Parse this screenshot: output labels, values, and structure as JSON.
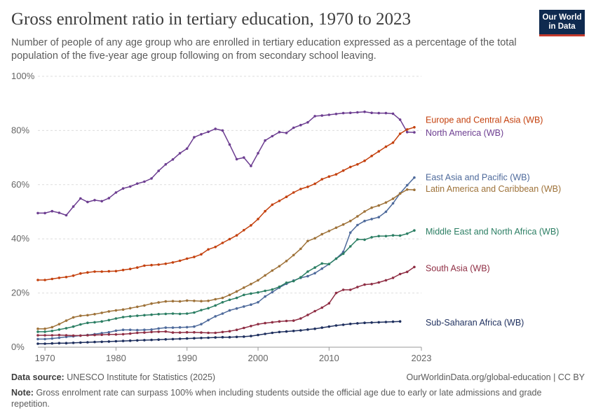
{
  "header": {
    "title": "Gross enrolment ratio in tertiary education, 1970 to 2023",
    "subtitle": "Number of people of any age group who are enrolled in tertiary education expressed as a percentage of the total population of the five-year age group following on from secondary school leaving.",
    "logo_line1": "Our World",
    "logo_line2": "in Data"
  },
  "footer": {
    "source_label": "Data source:",
    "source_text": "UNESCO Institute for Statistics (2025)",
    "url_text": "OurWorldinData.org/global-education | CC BY",
    "note_label": "Note:",
    "note_text": "Gross enrolment rate can surpass 100% when including students outside the official age due to early or late admissions and grade repetition."
  },
  "colors": {
    "grid": "#dddddd",
    "axis": "#999999",
    "text": "#666666"
  },
  "chart_data": {
    "type": "line",
    "title": "Gross enrolment ratio in tertiary education, 1970 to 2023",
    "xlim": [
      1969,
      2023
    ],
    "ylim": [
      0,
      100
    ],
    "xticks": [
      1970,
      1980,
      1990,
      2000,
      2010,
      2023
    ],
    "xtick_labels": [
      "1970",
      "1980",
      "1990",
      "2000",
      "2010",
      "2023"
    ],
    "yticks": [
      0,
      20,
      40,
      60,
      80,
      100
    ],
    "ytick_labels": [
      "0%",
      "20%",
      "40%",
      "60%",
      "80%",
      "100%"
    ],
    "grid": "horizontal dashed",
    "legend": "line-end labels",
    "series": [
      {
        "name": "North America (WB)",
        "color": "#6d3e91",
        "start_year": 1969,
        "values": [
          49.5,
          49.5,
          50.2,
          49.6,
          48.7,
          51.9,
          54.9,
          53.6,
          54.3,
          53.9,
          55.0,
          57.1,
          58.6,
          59.3,
          60.4,
          61.1,
          62.3,
          65.1,
          67.5,
          69.3,
          71.6,
          73.3,
          77.5,
          78.6,
          79.5,
          80.6,
          80.0,
          74.8,
          69.4,
          70.0,
          66.9,
          71.6,
          76.3,
          77.9,
          79.4,
          79.1,
          81.0,
          82.0,
          83.0,
          85.3,
          85.5,
          85.8,
          86.1,
          86.4,
          86.5,
          86.7,
          86.9,
          86.5,
          86.4,
          86.4,
          86.2,
          84.0,
          79.4,
          79.3
        ],
        "label_y": 79.1
      },
      {
        "name": "Europe and Central Asia (WB)",
        "color": "#c4410e",
        "start_year": 1969,
        "values": [
          24.8,
          24.8,
          25.2,
          25.6,
          25.9,
          26.4,
          27.2,
          27.6,
          27.9,
          27.9,
          28.0,
          28.1,
          28.5,
          28.9,
          29.4,
          30.1,
          30.3,
          30.5,
          30.8,
          31.3,
          31.9,
          32.7,
          33.3,
          34.3,
          36.1,
          37.0,
          38.5,
          39.9,
          41.3,
          43.2,
          45.0,
          47.3,
          50.2,
          52.6,
          54.0,
          55.5,
          57.1,
          58.4,
          59.2,
          60.3,
          62.0,
          63.0,
          63.8,
          65.2,
          66.5,
          67.5,
          68.8,
          70.6,
          72.3,
          74.0,
          75.5,
          78.8,
          80.4,
          81.2
        ],
        "label_y": 83.9
      },
      {
        "name": "East Asia and Pacific (WB)",
        "color": "#4e6a9b",
        "start_year": 1969,
        "values": [
          3.0,
          3.0,
          3.2,
          3.5,
          3.8,
          4.0,
          4.3,
          4.5,
          4.8,
          5.2,
          5.5,
          6.1,
          6.4,
          6.4,
          6.3,
          6.4,
          6.5,
          6.9,
          7.2,
          7.2,
          7.3,
          7.4,
          7.6,
          8.5,
          10.0,
          11.4,
          12.4,
          13.6,
          14.3,
          15.0,
          15.7,
          16.6,
          18.7,
          20.3,
          22.0,
          23.4,
          24.6,
          25.6,
          26.2,
          27.3,
          29.0,
          30.7,
          32.7,
          35.2,
          42.3,
          45.1,
          46.6,
          47.3,
          48.0,
          50.0,
          53.1,
          56.8,
          59.8,
          62.6
        ],
        "label_y": 62.7
      },
      {
        "name": "Latin America and Caribbean (WB)",
        "color": "#9e7239",
        "start_year": 1969,
        "values": [
          6.8,
          6.8,
          7.4,
          8.5,
          9.8,
          11.0,
          11.6,
          11.8,
          12.2,
          12.7,
          13.2,
          13.6,
          13.9,
          14.4,
          14.9,
          15.4,
          16.1,
          16.5,
          16.9,
          17.0,
          16.9,
          17.2,
          17.1,
          17.0,
          17.1,
          17.7,
          18.2,
          19.3,
          20.6,
          22.0,
          23.3,
          24.7,
          26.5,
          28.3,
          29.9,
          31.8,
          34.0,
          36.3,
          39.2,
          40.2,
          41.7,
          42.9,
          44.1,
          45.3,
          46.6,
          48.3,
          50.1,
          51.5,
          52.3,
          53.4,
          54.8,
          56.7,
          58.2,
          58.1
        ],
        "label_y": 58.4
      },
      {
        "name": "Middle East and North Africa (WB)",
        "color": "#2b7e63",
        "start_year": 1969,
        "values": [
          5.7,
          5.7,
          6.0,
          6.5,
          7.0,
          7.6,
          8.4,
          9.0,
          9.2,
          9.5,
          10.0,
          10.6,
          11.1,
          11.4,
          11.6,
          11.8,
          12.0,
          12.2,
          12.3,
          12.4,
          12.3,
          12.4,
          12.8,
          13.7,
          14.4,
          15.4,
          16.6,
          17.5,
          18.2,
          19.3,
          19.8,
          20.2,
          20.8,
          21.3,
          22.3,
          23.8,
          24.4,
          25.8,
          27.9,
          29.4,
          30.9,
          30.7,
          32.7,
          34.5,
          37.2,
          39.8,
          39.7,
          40.6,
          41.0,
          41.0,
          41.3,
          41.2,
          41.9,
          43.1
        ],
        "label_y": 42.7
      },
      {
        "name": "South Asia (WB)",
        "color": "#8f2e44",
        "start_year": 1969,
        "values": [
          4.4,
          4.4,
          4.4,
          4.5,
          4.4,
          4.3,
          4.3,
          4.4,
          4.5,
          4.6,
          4.7,
          4.7,
          4.8,
          5.0,
          5.3,
          5.4,
          5.6,
          5.7,
          5.8,
          5.4,
          5.4,
          5.5,
          5.5,
          5.4,
          5.3,
          5.3,
          5.6,
          5.9,
          6.4,
          7.1,
          7.8,
          8.5,
          8.9,
          9.2,
          9.5,
          9.7,
          9.8,
          10.6,
          11.9,
          13.3,
          14.6,
          16.2,
          20.0,
          21.2,
          21.2,
          22.2,
          23.1,
          23.3,
          23.9,
          24.7,
          25.6,
          27.0,
          27.8,
          29.6
        ],
        "label_y": 29.1
      },
      {
        "name": "Sub-Saharan Africa (WB)",
        "color": "#1e2f5e",
        "start_year": 1969,
        "values": [
          1.3,
          1.3,
          1.4,
          1.5,
          1.5,
          1.6,
          1.7,
          1.8,
          1.9,
          2.0,
          2.1,
          2.2,
          2.3,
          2.4,
          2.5,
          2.6,
          2.7,
          2.8,
          2.9,
          3.0,
          3.1,
          3.2,
          3.3,
          3.4,
          3.5,
          3.6,
          3.7,
          3.7,
          3.8,
          3.9,
          4.1,
          4.5,
          4.9,
          5.3,
          5.6,
          5.8,
          6.0,
          6.2,
          6.5,
          6.8,
          7.2,
          7.6,
          8.0,
          8.3,
          8.6,
          8.8,
          9.0,
          9.1,
          9.2,
          9.3,
          9.4,
          9.5
        ],
        "label_y": 9.1
      }
    ]
  }
}
